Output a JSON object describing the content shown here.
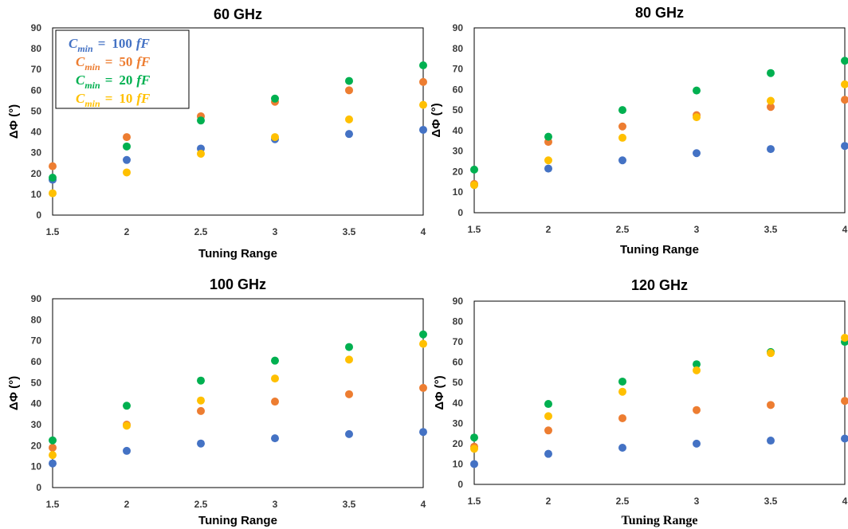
{
  "colors": {
    "series_100fF": "#4472c4",
    "series_50fF": "#ed7d31",
    "series_20fF": "#00b050",
    "series_10fF": "#ffc000"
  },
  "legend": [
    {
      "var": "C",
      "sub": "min",
      "eq": "=",
      "value": "100",
      "unit": "fF"
    },
    {
      "var": "C",
      "sub": "min",
      "eq": "=",
      "value": "50",
      "unit": "fF"
    },
    {
      "var": "C",
      "sub": "min",
      "eq": "=",
      "value": "20",
      "unit": "fF"
    },
    {
      "var": "C",
      "sub": "min",
      "eq": "=",
      "value": "10",
      "unit": "fF"
    }
  ],
  "chart_data": [
    {
      "type": "scatter",
      "title": "60 GHz",
      "xlabel": "Tuning Range",
      "ylabel": "ΔΦ (°)",
      "x_ticks": [
        "1.5",
        "2",
        "2.5",
        "3",
        "3.5",
        "4"
      ],
      "y_ticks": [
        "0",
        "10",
        "20",
        "30",
        "40",
        "50",
        "60",
        "70",
        "80",
        "90"
      ],
      "xlim": [
        1.5,
        4
      ],
      "ylim": [
        0,
        90
      ],
      "grid": false,
      "legend_position": "top-left",
      "x": [
        1.5,
        2,
        2.5,
        3,
        3.5,
        4
      ],
      "series": [
        {
          "name": "Cmin = 100 fF",
          "color": "#4472c4",
          "values": [
            17,
            26.5,
            32,
            36.5,
            39,
            41
          ]
        },
        {
          "name": "Cmin = 50 fF",
          "color": "#ed7d31",
          "values": [
            23.5,
            37.5,
            47.5,
            54.5,
            60,
            64
          ]
        },
        {
          "name": "Cmin = 20 fF",
          "color": "#00b050",
          "values": [
            18,
            33,
            45.5,
            56,
            64.5,
            72
          ]
        },
        {
          "name": "Cmin = 10 fF",
          "color": "#ffc000",
          "values": [
            10.5,
            20.5,
            29.5,
            37.5,
            46,
            53
          ]
        }
      ]
    },
    {
      "type": "scatter",
      "title": "80 GHz",
      "xlabel": "Tuning Range",
      "ylabel": "ΔΦ (°)",
      "x_ticks": [
        "1.5",
        "2",
        "2.5",
        "3",
        "3.5",
        "4"
      ],
      "y_ticks": [
        "0",
        "10",
        "20",
        "30",
        "40",
        "50",
        "60",
        "70",
        "80",
        "90"
      ],
      "xlim": [
        1.5,
        4
      ],
      "ylim": [
        0,
        90
      ],
      "grid": false,
      "x": [
        1.5,
        2,
        2.5,
        3,
        3.5,
        4
      ],
      "series": [
        {
          "name": "Cmin = 100 fF",
          "color": "#4472c4",
          "values": [
            13.5,
            21.5,
            25.5,
            29,
            31,
            32.5
          ]
        },
        {
          "name": "Cmin = 50 fF",
          "color": "#ed7d31",
          "values": [
            14,
            34.5,
            42,
            47.5,
            51.5,
            55
          ]
        },
        {
          "name": "Cmin = 20 fF",
          "color": "#00b050",
          "values": [
            21,
            37,
            50,
            59.5,
            68,
            74
          ]
        },
        {
          "name": "Cmin = 10 fF",
          "color": "#ffc000",
          "values": [
            13.5,
            25.5,
            36.5,
            46.5,
            54.5,
            62.5
          ]
        }
      ]
    },
    {
      "type": "scatter",
      "title": "100 GHz",
      "xlabel": "Tuning Range",
      "ylabel": "ΔΦ (°)",
      "x_ticks": [
        "1.5",
        "2",
        "2.5",
        "3",
        "3.5",
        "4"
      ],
      "y_ticks": [
        "0",
        "10",
        "20",
        "30",
        "40",
        "50",
        "60",
        "70",
        "80",
        "90"
      ],
      "xlim": [
        1.5,
        4
      ],
      "ylim": [
        0,
        90
      ],
      "grid": false,
      "x": [
        1.5,
        2,
        2.5,
        3,
        3.5,
        4
      ],
      "series": [
        {
          "name": "Cmin = 100 fF",
          "color": "#4472c4",
          "values": [
            11.5,
            17.5,
            21,
            23.5,
            25.5,
            26.5
          ]
        },
        {
          "name": "Cmin = 50 fF",
          "color": "#ed7d31",
          "values": [
            19,
            30,
            36.5,
            41,
            44.5,
            47.5
          ]
        },
        {
          "name": "Cmin = 20 fF",
          "color": "#00b050",
          "values": [
            22.5,
            39,
            51,
            60.5,
            67,
            73
          ]
        },
        {
          "name": "Cmin = 10 fF",
          "color": "#ffc000",
          "values": [
            15.5,
            29.5,
            41.5,
            52,
            61,
            68.5
          ]
        }
      ]
    },
    {
      "type": "scatter",
      "title": "120 GHz",
      "xlabel": "Tuning Range",
      "ylabel": "ΔΦ (°)",
      "x_ticks": [
        "1.5",
        "2",
        "2.5",
        "3",
        "3.5",
        "4"
      ],
      "y_ticks": [
        "0",
        "10",
        "20",
        "30",
        "40",
        "50",
        "60",
        "70",
        "80",
        "90"
      ],
      "xlim": [
        1.5,
        4
      ],
      "ylim": [
        0,
        90
      ],
      "grid": false,
      "x": [
        1.5,
        2,
        2.5,
        3,
        3.5,
        4
      ],
      "series": [
        {
          "name": "Cmin = 100 fF",
          "color": "#4472c4",
          "values": [
            10,
            15,
            18,
            20,
            21.5,
            22.5
          ]
        },
        {
          "name": "Cmin = 50 fF",
          "color": "#ed7d31",
          "values": [
            18.5,
            26.5,
            32.5,
            36.5,
            39,
            41
          ]
        },
        {
          "name": "Cmin = 20 fF",
          "color": "#00b050",
          "values": [
            23,
            39.5,
            50.5,
            59,
            65,
            70
          ]
        },
        {
          "name": "Cmin = 10 fF",
          "color": "#ffc000",
          "values": [
            17.5,
            33.5,
            45.5,
            56,
            64.5,
            72
          ]
        }
      ]
    }
  ]
}
